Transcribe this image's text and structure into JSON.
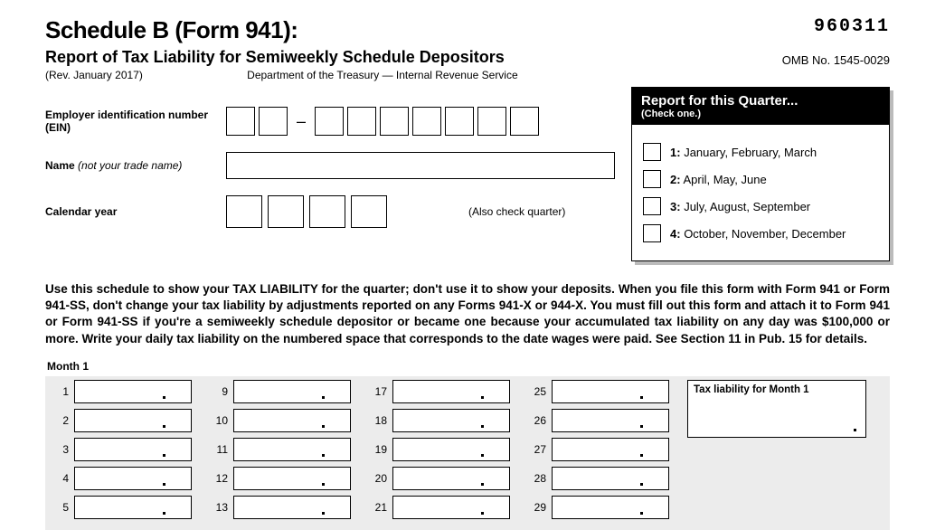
{
  "form_code": "960311",
  "title": "Schedule B (Form 941):",
  "subtitle": "Report of Tax Liability for Semiweekly Schedule Depositors",
  "revision": "(Rev. January 2017)",
  "department": "Department of the Treasury — Internal Revenue Service",
  "omb": "OMB No. 1545-0029",
  "fields": {
    "ein_label": "Employer identification number (EIN)",
    "name_label": "Name",
    "name_hint": "(not your trade name)",
    "year_label": "Calendar year",
    "also_check": "(Also check quarter)"
  },
  "quarter": {
    "title": "Report for this Quarter...",
    "sub": "(Check one.)",
    "options": [
      {
        "num": "1:",
        "text": "January, February, March"
      },
      {
        "num": "2:",
        "text": "April, May, June"
      },
      {
        "num": "3:",
        "text": "July, August, September"
      },
      {
        "num": "4:",
        "text": "October, November, December"
      }
    ]
  },
  "instructions": "Use this schedule to show your TAX LIABILITY for the quarter; don't use it to show your deposits. When you file this form with Form 941 or Form 941-SS, don't change your tax liability by adjustments reported on any Forms 941-X or 944-X. You must fill out this form and attach it to Form 941 or Form 941-SS if you're a semiweekly schedule depositor or became one because your accumulated tax liability on any day was $100,000 or more. Write your daily tax liability on the numbered space that corresponds to the date wages were paid. See Section 11 in Pub. 15 for details.",
  "month1": {
    "title": "Month 1",
    "total_label": "Tax liability for Month 1",
    "columns": [
      [
        1,
        2,
        3,
        4,
        5
      ],
      [
        9,
        10,
        11,
        12,
        13
      ],
      [
        17,
        18,
        19,
        20,
        21
      ],
      [
        25,
        26,
        27,
        28,
        29
      ]
    ]
  }
}
